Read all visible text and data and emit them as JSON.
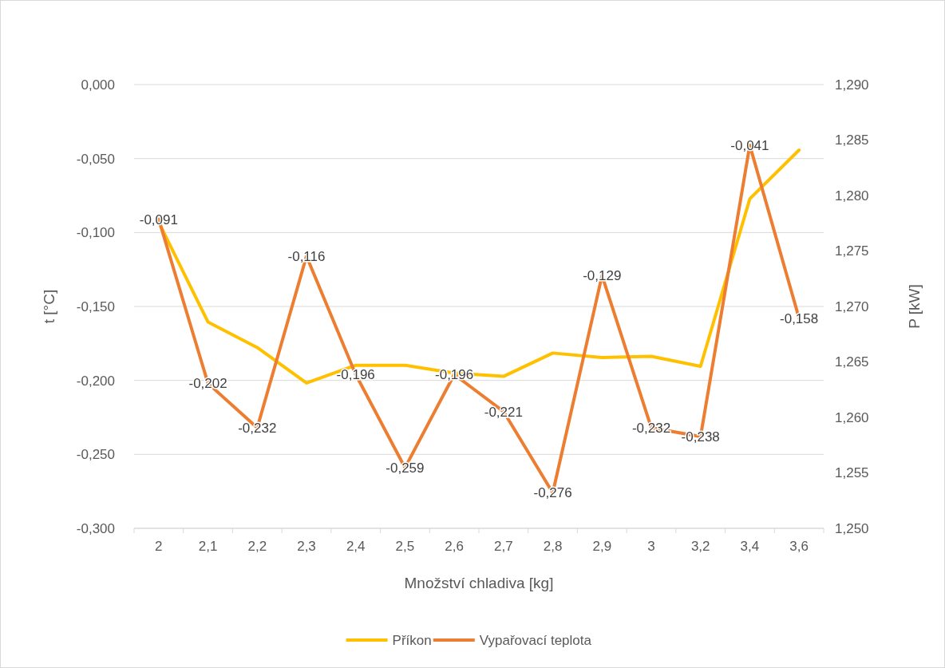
{
  "chart_data": {
    "type": "line",
    "xlabel": "Množství chladiva [kg]",
    "ylabel": "t [°C]",
    "y2label": "P [kW]",
    "categories": [
      "2",
      "2,1",
      "2,2",
      "2,3",
      "2,4",
      "2,5",
      "2,6",
      "2,7",
      "2,8",
      "2,9",
      "3",
      "3,2",
      "3,4",
      "3,6"
    ],
    "series": [
      {
        "name": "Příkon",
        "color": "#ffc000",
        "axis": "y2",
        "values": [
          1.2776,
          1.2686,
          1.2663,
          1.2631,
          1.2647,
          1.2647,
          1.264,
          1.2637,
          1.2658,
          1.2654,
          1.2655,
          1.2646,
          1.2797,
          1.2841
        ]
      },
      {
        "name": "Vypařovací teplota",
        "color": "#ed7d31",
        "values": [
          -0.091,
          -0.202,
          -0.232,
          -0.116,
          -0.196,
          -0.259,
          -0.196,
          -0.221,
          -0.276,
          -0.129,
          -0.232,
          -0.238,
          -0.041,
          -0.158
        ],
        "value_labels": [
          "-0,091",
          "-0,202",
          "-0,232",
          "-0,116",
          "-0,196",
          "-0,259",
          "-0,196",
          "-0,221",
          "-0,276",
          "-0,129",
          "-0,232",
          "-0,238",
          "-0,041",
          "-0,158"
        ]
      }
    ],
    "ylim": [
      -0.3,
      0
    ],
    "yticks": [
      {
        "value": -0.3,
        "label": "-0,300"
      },
      {
        "value": -0.25,
        "label": "-0,250"
      },
      {
        "value": -0.2,
        "label": "-0,200"
      },
      {
        "value": -0.15,
        "label": "-0,150"
      },
      {
        "value": -0.1,
        "label": "-0,100"
      },
      {
        "value": -0.05,
        "label": "-0,050"
      },
      {
        "value": 0,
        "label": "0,000"
      }
    ],
    "y2lim": [
      1.25,
      1.29
    ],
    "y2ticks": [
      {
        "value": 1.25,
        "label": "1,250"
      },
      {
        "value": 1.255,
        "label": "1,255"
      },
      {
        "value": 1.26,
        "label": "1,260"
      },
      {
        "value": 1.265,
        "label": "1,265"
      },
      {
        "value": 1.27,
        "label": "1,270"
      },
      {
        "value": 1.275,
        "label": "1,275"
      },
      {
        "value": 1.28,
        "label": "1,280"
      },
      {
        "value": 1.285,
        "label": "1,285"
      },
      {
        "value": 1.29,
        "label": "1,290"
      }
    ],
    "grid": "y",
    "legend": "bottom",
    "marker": "none",
    "line_style": "solid"
  }
}
